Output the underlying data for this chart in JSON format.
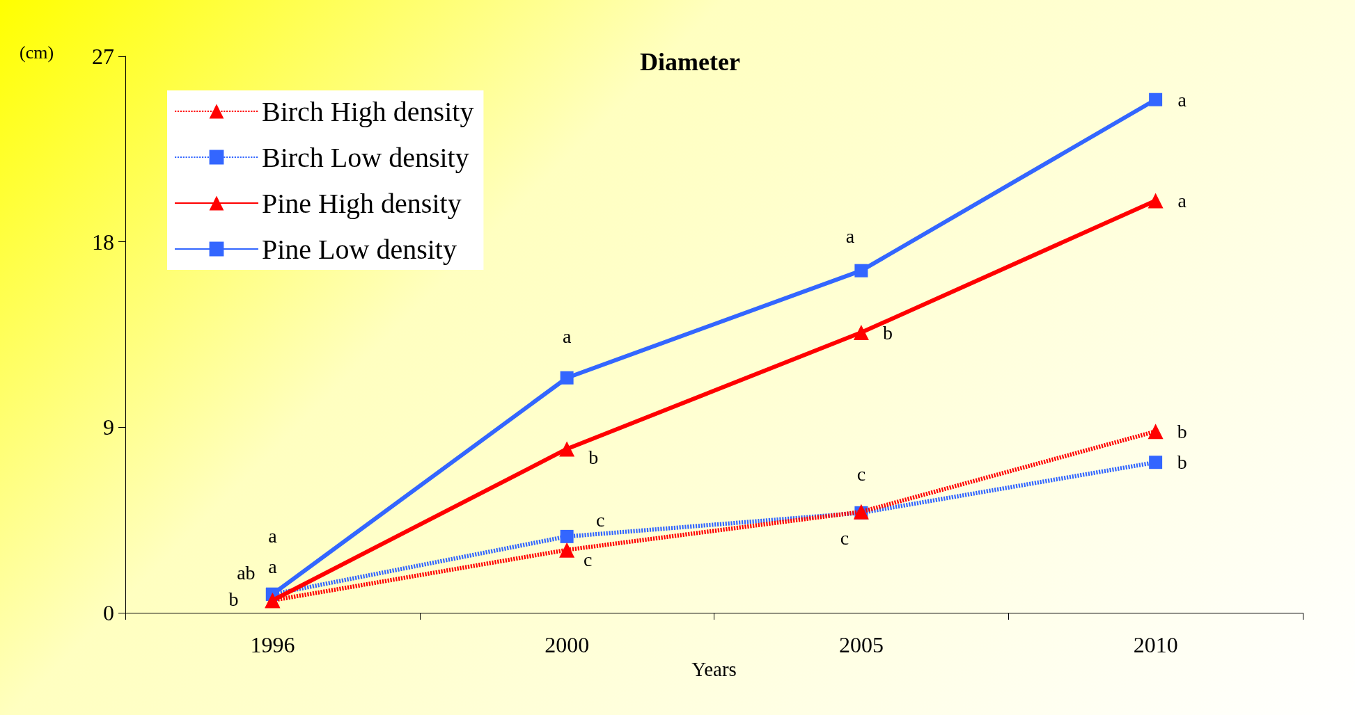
{
  "chart_data": {
    "type": "line",
    "title": "Diameter",
    "xlabel": "Years",
    "ylabel": "(cm)",
    "categories": [
      "1996",
      "2000",
      "2005",
      "2010"
    ],
    "series": [
      {
        "name": "Birch High density",
        "color": "#ff0000",
        "marker": "triangle",
        "line_style": "dashed",
        "values": [
          0.6,
          3.05,
          4.9,
          8.8
        ],
        "value_labels": [
          "b",
          "c",
          "c",
          "b"
        ]
      },
      {
        "name": "Birch Low density",
        "color": "#3366ff",
        "marker": "square",
        "line_style": "dashed",
        "values": [
          0.9,
          3.7,
          4.85,
          7.3
        ],
        "value_labels": [
          "a",
          "c",
          "c",
          "b"
        ]
      },
      {
        "name": "Pine High density",
        "color": "#ff0000",
        "marker": "triangle",
        "line_style": "solid",
        "values": [
          0.6,
          7.95,
          13.6,
          20.0
        ],
        "value_labels": [
          "ab",
          "b",
          "b",
          "a"
        ]
      },
      {
        "name": "Pine Low density",
        "color": "#3366ff",
        "marker": "square",
        "line_style": "solid",
        "values": [
          0.9,
          11.4,
          16.6,
          24.9
        ],
        "value_labels": [
          "a",
          "a",
          "a",
          "a"
        ]
      }
    ],
    "ylim": [
      0,
      27
    ],
    "yticks": [
      0,
      9,
      18,
      27
    ],
    "grid": false,
    "legend": "top left"
  }
}
